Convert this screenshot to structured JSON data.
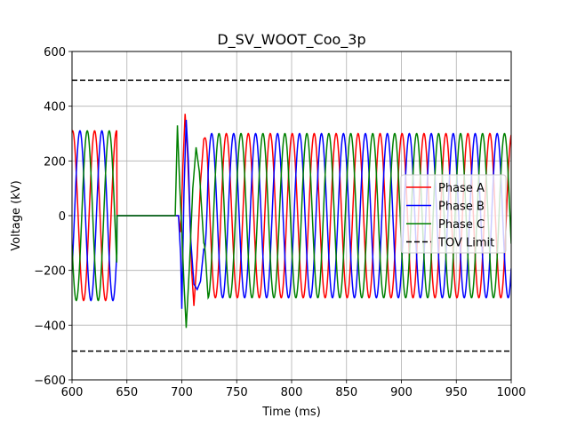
{
  "chart_data": {
    "type": "line",
    "title": "D_SV_WOOT_Coo_3p",
    "xlabel": "Time (ms)",
    "ylabel": "Voltage (kV)",
    "xlim": [
      600,
      1000
    ],
    "ylim": [
      -600,
      600
    ],
    "xticks": [
      600,
      650,
      700,
      750,
      800,
      850,
      900,
      950,
      1000
    ],
    "yticks": [
      -600,
      -400,
      -200,
      0,
      200,
      400,
      600
    ],
    "grid": true,
    "legend_position": "center-right",
    "frequency_hz": 50,
    "fault_interval_ms": [
      641,
      696
    ],
    "series": [
      {
        "name": "Phase A",
        "color": "#ff0000",
        "amplitude_pre_kv": 310,
        "amplitude_post_kv": 300,
        "phase_deg": 80,
        "transient": [
          [
            697,
            0
          ],
          [
            699,
            -60
          ],
          [
            701,
            180
          ],
          [
            703,
            372
          ],
          [
            705,
            250
          ],
          [
            707,
            40
          ],
          [
            709,
            -200
          ],
          [
            711,
            -330
          ],
          [
            714,
            -150
          ],
          [
            717,
            120
          ],
          [
            720,
            280
          ]
        ]
      },
      {
        "name": "Phase B",
        "color": "#0000ff",
        "amplitude_pre_kv": 310,
        "amplitude_post_kv": 300,
        "phase_deg": -40,
        "transient": [
          [
            697,
            0
          ],
          [
            699,
            -150
          ],
          [
            700,
            -340
          ],
          [
            702,
            90
          ],
          [
            704,
            350
          ],
          [
            706,
            200
          ],
          [
            708,
            -80
          ],
          [
            711,
            -250
          ],
          [
            714,
            -270
          ],
          [
            717,
            -240
          ],
          [
            720,
            -120
          ]
        ]
      },
      {
        "name": "Phase C",
        "color": "#008000",
        "amplitude_pre_kv": 310,
        "amplitude_post_kv": 300,
        "phase_deg": 200,
        "transient": [
          [
            694,
            0
          ],
          [
            696,
            330
          ],
          [
            698,
            120
          ],
          [
            700,
            -60
          ],
          [
            702,
            -250
          ],
          [
            704,
            -410
          ],
          [
            707,
            -180
          ],
          [
            710,
            100
          ],
          [
            713,
            250
          ],
          [
            716,
            160
          ],
          [
            720,
            -100
          ]
        ]
      },
      {
        "name": "TOV Limit",
        "color": "#000000",
        "dashed": true,
        "values_kv": [
          495,
          -495
        ]
      }
    ]
  }
}
